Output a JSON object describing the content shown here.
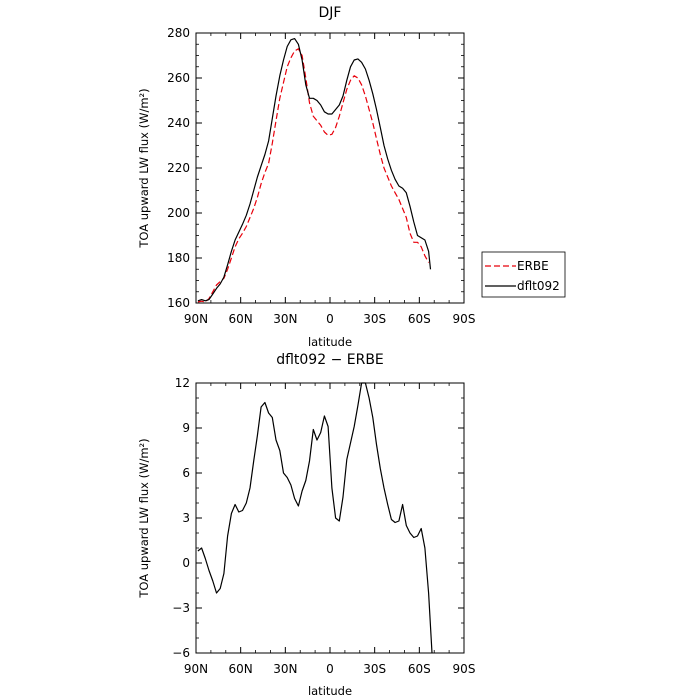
{
  "chart_data": [
    {
      "type": "line",
      "title": "DJF",
      "xlabel": "latitude",
      "ylabel": "TOA upward LW flux (W/m²)",
      "xlim": [
        90,
        -90
      ],
      "ylim": [
        160,
        280
      ],
      "x_ticks": [
        90,
        60,
        30,
        0,
        -30,
        -60,
        -90
      ],
      "x_tick_labels": [
        "90N",
        "60N",
        "30N",
        "0",
        "30S",
        "60S",
        "90S"
      ],
      "y_ticks": [
        160,
        180,
        200,
        220,
        240,
        260,
        280
      ],
      "y_tick_labels": [
        "160",
        "180",
        "200",
        "220",
        "240",
        "260",
        "280"
      ],
      "legend": {
        "placement": "right",
        "entries": [
          "ERBE",
          "dflt092"
        ]
      },
      "series": [
        {
          "name": "ERBE",
          "color": "#e8000b",
          "dash": "dashed",
          "points": [
            [
              88.75,
              160.5
            ],
            [
              86.25,
              160.8
            ],
            [
              83.75,
              160.4
            ],
            [
              81.25,
              162
            ],
            [
              78.75,
              165
            ],
            [
              76.25,
              168
            ],
            [
              73.75,
              169.5
            ],
            [
              71.25,
              171
            ],
            [
              68.75,
              175
            ],
            [
              66.25,
              180
            ],
            [
              63.75,
              185
            ],
            [
              61.25,
              188.5
            ],
            [
              58.75,
              191
            ],
            [
              56.25,
              194
            ],
            [
              53.75,
              198
            ],
            [
              51.25,
              202
            ],
            [
              48.75,
              207
            ],
            [
              46.25,
              213
            ],
            [
              43.75,
              218
            ],
            [
              41.25,
              222
            ],
            [
              38.75,
              231
            ],
            [
              36.25,
              241
            ],
            [
              33.75,
              251
            ],
            [
              31.25,
              258
            ],
            [
              28.75,
              265
            ],
            [
              26.25,
              269
            ],
            [
              23.75,
              272
            ],
            [
              21.25,
              273
            ],
            [
              18.75,
              270
            ],
            [
              16.25,
              260
            ],
            [
              13.75,
              249
            ],
            [
              11.25,
              243
            ],
            [
              8.75,
              241
            ],
            [
              6.25,
              239
            ],
            [
              3.75,
              236
            ],
            [
              1.25,
              234.5
            ],
            [
              -1.25,
              235
            ],
            [
              -3.75,
              238
            ],
            [
              -6.25,
              243
            ],
            [
              -8.75,
              249
            ],
            [
              -11.25,
              255
            ],
            [
              -13.75,
              259
            ],
            [
              -16.25,
              261
            ],
            [
              -18.75,
              260
            ],
            [
              -21.25,
              257
            ],
            [
              -23.75,
              252
            ],
            [
              -26.25,
              246
            ],
            [
              -28.75,
              240
            ],
            [
              -31.25,
              233
            ],
            [
              -33.75,
              226
            ],
            [
              -36.25,
              220
            ],
            [
              -38.75,
              216
            ],
            [
              -41.25,
              212
            ],
            [
              -43.75,
              209
            ],
            [
              -46.25,
              206
            ],
            [
              -48.75,
              202
            ],
            [
              -51.25,
              198
            ],
            [
              -53.75,
              191
            ],
            [
              -56.25,
              187
            ],
            [
              -58.75,
              187
            ],
            [
              -61.25,
              185
            ],
            [
              -63.75,
              181
            ],
            [
              -66.25,
              178
            ]
          ]
        },
        {
          "name": "dflt092",
          "color": "#000000",
          "dash": "solid",
          "points": [
            [
              88.75,
              161
            ],
            [
              86.25,
              161.5
            ],
            [
              83.75,
              161
            ],
            [
              81.25,
              161.5
            ],
            [
              78.75,
              164
            ],
            [
              76.25,
              166.5
            ],
            [
              73.75,
              168.5
            ],
            [
              71.25,
              171.5
            ],
            [
              68.75,
              177
            ],
            [
              66.25,
              183
            ],
            [
              63.75,
              188
            ],
            [
              61.25,
              191.5
            ],
            [
              58.75,
              195
            ],
            [
              56.25,
              199
            ],
            [
              53.75,
              204
            ],
            [
              51.25,
              210
            ],
            [
              48.75,
              216
            ],
            [
              46.25,
              221
            ],
            [
              43.75,
              226
            ],
            [
              41.25,
              232
            ],
            [
              38.75,
              242
            ],
            [
              36.25,
              252
            ],
            [
              33.75,
              261
            ],
            [
              31.25,
              268
            ],
            [
              28.75,
              274
            ],
            [
              26.25,
              277
            ],
            [
              23.75,
              277.5
            ],
            [
              21.25,
              275
            ],
            [
              18.75,
              268
            ],
            [
              16.25,
              257
            ],
            [
              13.75,
              251
            ],
            [
              11.25,
              251
            ],
            [
              8.75,
              250
            ],
            [
              6.25,
              248
            ],
            [
              3.75,
              245
            ],
            [
              1.25,
              244
            ],
            [
              -1.25,
              244
            ],
            [
              -3.75,
              246
            ],
            [
              -6.25,
              248
            ],
            [
              -8.75,
              252
            ],
            [
              -11.25,
              259
            ],
            [
              -13.75,
              265
            ],
            [
              -16.25,
              268
            ],
            [
              -18.75,
              268.5
            ],
            [
              -21.25,
              267
            ],
            [
              -23.75,
              264
            ],
            [
              -26.25,
              259
            ],
            [
              -28.75,
              253
            ],
            [
              -31.25,
              246
            ],
            [
              -33.75,
              238
            ],
            [
              -36.25,
              230
            ],
            [
              -38.75,
              224
            ],
            [
              -41.25,
              219
            ],
            [
              -43.75,
              215
            ],
            [
              -46.25,
              212
            ],
            [
              -48.75,
              211
            ],
            [
              -51.25,
              209
            ],
            [
              -53.75,
              203
            ],
            [
              -56.25,
              196
            ],
            [
              -58.75,
              190
            ],
            [
              -61.25,
              189
            ],
            [
              -63.75,
              188
            ],
            [
              -66.25,
              183
            ],
            [
              -67.5,
              175
            ]
          ]
        }
      ]
    },
    {
      "type": "line",
      "title": "dflt092 − ERBE",
      "xlabel": "latitude",
      "ylabel": "TOA upward LW flux (W/m²)",
      "xlim": [
        90,
        -90
      ],
      "ylim": [
        -6,
        12
      ],
      "x_ticks": [
        90,
        60,
        30,
        0,
        -30,
        -60,
        -90
      ],
      "x_tick_labels": [
        "90N",
        "60N",
        "30N",
        "0",
        "30S",
        "60S",
        "90S"
      ],
      "y_ticks": [
        -6,
        -3,
        0,
        3,
        6,
        9,
        12
      ],
      "y_tick_labels": [
        "−6",
        "−3",
        "0",
        "3",
        "6",
        "9",
        "12"
      ],
      "series": [
        {
          "color": "#000000",
          "dash": "solid",
          "points": [
            [
              88.75,
              0.8
            ],
            [
              86.25,
              1
            ],
            [
              83.75,
              0.3
            ],
            [
              81.25,
              -0.5
            ],
            [
              78.75,
              -1.2
            ],
            [
              76.25,
              -2
            ],
            [
              73.75,
              -1.7
            ],
            [
              71.25,
              -0.7
            ],
            [
              68.75,
              1.8
            ],
            [
              66.25,
              3.3
            ],
            [
              63.75,
              3.9
            ],
            [
              61.25,
              3.4
            ],
            [
              58.75,
              3.5
            ],
            [
              56.25,
              4
            ],
            [
              53.75,
              5
            ],
            [
              51.25,
              6.8
            ],
            [
              48.75,
              8.5
            ],
            [
              46.25,
              10.4
            ],
            [
              43.75,
              10.7
            ],
            [
              41.25,
              10
            ],
            [
              38.75,
              9.7
            ],
            [
              36.25,
              8.2
            ],
            [
              33.75,
              7.5
            ],
            [
              31.25,
              6
            ],
            [
              28.75,
              5.7
            ],
            [
              26.25,
              5.2
            ],
            [
              23.75,
              4.3
            ],
            [
              21.25,
              3.8
            ],
            [
              18.75,
              4.8
            ],
            [
              16.25,
              5.5
            ],
            [
              13.75,
              6.8
            ],
            [
              11.25,
              8.9
            ],
            [
              8.75,
              8.2
            ],
            [
              6.25,
              8.7
            ],
            [
              3.75,
              9.8
            ],
            [
              1.25,
              9.1
            ],
            [
              -1.25,
              5
            ],
            [
              -3.75,
              3
            ],
            [
              -6.25,
              2.8
            ],
            [
              -8.75,
              4.4
            ],
            [
              -11.25,
              6.9
            ],
            [
              -13.75,
              8
            ],
            [
              -16.25,
              9.1
            ],
            [
              -18.75,
              10.5
            ],
            [
              -21.25,
              12
            ],
            [
              -23.75,
              12
            ],
            [
              -26.25,
              11
            ],
            [
              -28.75,
              9.7
            ],
            [
              -31.25,
              7.9
            ],
            [
              -33.75,
              6.3
            ],
            [
              -36.25,
              5
            ],
            [
              -38.75,
              3.9
            ],
            [
              -41.25,
              2.9
            ],
            [
              -43.75,
              2.7
            ],
            [
              -46.25,
              2.8
            ],
            [
              -48.75,
              3.9
            ],
            [
              -51.25,
              2.5
            ],
            [
              -53.75,
              2
            ],
            [
              -56.25,
              1.7
            ],
            [
              -58.75,
              1.8
            ],
            [
              -61.25,
              2.3
            ],
            [
              -63.75,
              1
            ],
            [
              -66.25,
              -2
            ],
            [
              -68.5,
              -6
            ]
          ]
        }
      ]
    }
  ]
}
